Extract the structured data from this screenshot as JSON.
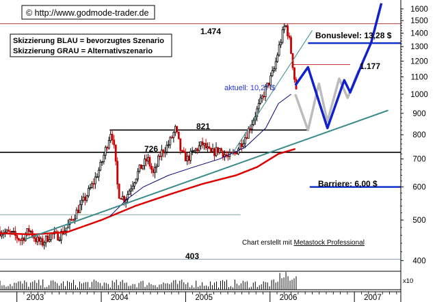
{
  "chart_data": {
    "type": "candlestick",
    "watermark": "© http://www.godmode-trader.de",
    "legend": [
      "Skizzierung BLAU = bevorzugtes Szenario",
      "Skizzierung GRAU = Alternativszenario"
    ],
    "credit": {
      "prefix": "Chart erstellt mit ",
      "link": "Metastock Professional"
    },
    "y_ticks": [
      1600,
      1500,
      1400,
      1300,
      1200,
      1100,
      1000,
      900,
      800,
      700,
      600,
      500,
      400
    ],
    "y_scale": "log",
    "ylim": [
      380,
      1680
    ],
    "x_ticks": [
      "2003",
      "2004",
      "2005",
      "2006",
      "2007"
    ],
    "xlim": [
      2002.8,
      2007.55
    ],
    "volume_unit": "x10",
    "levels": [
      {
        "value": 1474,
        "label": "1.474",
        "color": "#b03030"
      },
      {
        "value": 821,
        "label": "821",
        "color": "#000000"
      },
      {
        "value": 726,
        "label": "726",
        "color": "#000000"
      },
      {
        "value": 403,
        "label": "403",
        "color": "#8899bb"
      },
      {
        "value": 515,
        "label": "",
        "color": "#7fa6a6"
      }
    ],
    "current": {
      "label": "aktuell: 10,27 $",
      "color": "#2233dd"
    },
    "bonus_level": {
      "label": "Bonuslevel: 13,28 $",
      "value": 1325
    },
    "resistance": {
      "label": "1.177",
      "value": 1177
    },
    "barrier": {
      "label": "Barriere: 6,00 $",
      "value": 600
    },
    "colors": {
      "up": "#000000",
      "down": "#cc0000",
      "ma_long": "#dd0000",
      "ma_short": "#000080",
      "trend": "#3a8a8a",
      "scenario_blue": "#1020cc",
      "scenario_gray": "#bbbbbb",
      "level_line": "#000000",
      "bonus_line": "#1030cc"
    },
    "price_path": [
      [
        2002.8,
        470
      ],
      [
        2002.95,
        462
      ],
      [
        2003.05,
        448
      ],
      [
        2003.15,
        475
      ],
      [
        2003.22,
        450
      ],
      [
        2003.3,
        440
      ],
      [
        2003.4,
        462
      ],
      [
        2003.5,
        458
      ],
      [
        2003.6,
        482
      ],
      [
        2003.7,
        520
      ],
      [
        2003.8,
        560
      ],
      [
        2003.9,
        610
      ],
      [
        2004.0,
        680
      ],
      [
        2004.07,
        760
      ],
      [
        2004.12,
        825
      ],
      [
        2004.16,
        720
      ],
      [
        2004.2,
        580
      ],
      [
        2004.28,
        560
      ],
      [
        2004.35,
        600
      ],
      [
        2004.45,
        660
      ],
      [
        2004.55,
        700
      ],
      [
        2004.62,
        640
      ],
      [
        2004.7,
        720
      ],
      [
        2004.8,
        760
      ],
      [
        2004.88,
        826
      ],
      [
        2004.95,
        720
      ],
      [
        2005.02,
        700
      ],
      [
        2005.1,
        730
      ],
      [
        2005.2,
        760
      ],
      [
        2005.3,
        720
      ],
      [
        2005.4,
        740
      ],
      [
        2005.5,
        705
      ],
      [
        2005.58,
        720
      ],
      [
        2005.65,
        760
      ],
      [
        2005.72,
        800
      ],
      [
        2005.8,
        870
      ],
      [
        2005.88,
        950
      ],
      [
        2005.95,
        1030
      ],
      [
        2006.0,
        1080
      ],
      [
        2006.05,
        1150
      ],
      [
        2006.1,
        1280
      ],
      [
        2006.15,
        1400
      ],
      [
        2006.18,
        1474
      ],
      [
        2006.22,
        1380
      ],
      [
        2006.26,
        1220
      ],
      [
        2006.3,
        1050
      ],
      [
        2006.33,
        1000
      ]
    ],
    "ma_short": [
      [
        2004.1,
        510
      ],
      [
        2004.3,
        560
      ],
      [
        2004.5,
        600
      ],
      [
        2004.8,
        640
      ],
      [
        2005.1,
        670
      ],
      [
        2005.4,
        700
      ],
      [
        2005.7,
        745
      ],
      [
        2005.95,
        830
      ],
      [
        2006.1,
        950
      ],
      [
        2006.25,
        1000
      ]
    ],
    "ma_long": [
      [
        2002.8,
        465
      ],
      [
        2003.2,
        462
      ],
      [
        2003.6,
        468
      ],
      [
        2004.0,
        500
      ],
      [
        2004.4,
        540
      ],
      [
        2004.8,
        575
      ],
      [
        2005.2,
        610
      ],
      [
        2005.6,
        640
      ],
      [
        2005.85,
        670
      ],
      [
        2006.1,
        720
      ],
      [
        2006.3,
        740
      ]
    ],
    "trendline": [
      [
        2003.1,
        450
      ],
      [
        2007.4,
        915
      ]
    ],
    "trendline_steep": [
      [
        2005.55,
        720
      ],
      [
        2006.5,
        1420
      ]
    ],
    "scenario_blue": [
      [
        2006.3,
        1050
      ],
      [
        2006.45,
        1160
      ],
      [
        2006.68,
        830
      ],
      [
        2006.88,
        1080
      ],
      [
        2006.95,
        1010
      ],
      [
        2007.1,
        1195
      ],
      [
        2007.2,
        1330
      ],
      [
        2007.32,
        1650
      ]
    ],
    "scenario_gray": [
      [
        2006.3,
        1000
      ],
      [
        2006.45,
        820
      ],
      [
        2006.58,
        1060
      ],
      [
        2006.68,
        860
      ],
      [
        2006.82,
        1090
      ],
      [
        2006.92,
        980
      ],
      [
        2007.05,
        1140
      ]
    ]
  }
}
